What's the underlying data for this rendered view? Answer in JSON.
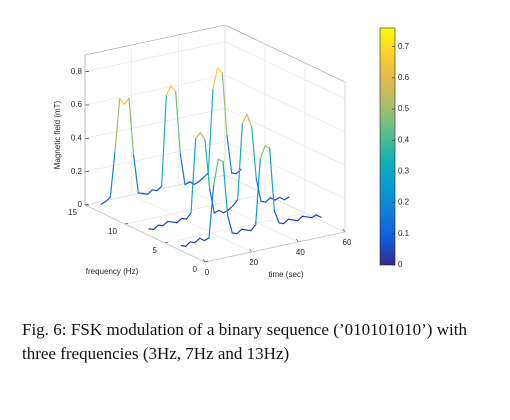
{
  "chart_data": {
    "type": "waterfall3d",
    "zlabel": "Magnetic field (mT)",
    "ylabel": "frequency (Hz)",
    "xlabel": "time (sec)",
    "caption": "Fig. 6: FSK modulation of a binary sequence (’010101010’) with three frequencies (3Hz, 7Hz and 13Hz)",
    "x": [
      0,
      2,
      4,
      6,
      8,
      10,
      12,
      14,
      16,
      18,
      20,
      22,
      24,
      26,
      28,
      30,
      32,
      34,
      36,
      38,
      40,
      42,
      44,
      46,
      48,
      50,
      52,
      54,
      56,
      58,
      60
    ],
    "series": [
      {
        "frequency": 13,
        "values": [
          0.05,
          0.06,
          0.08,
          0.35,
          0.66,
          0.62,
          0.65,
          0.3,
          0.07,
          0.06,
          0.05,
          0.07,
          0.06,
          0.08,
          0.62,
          0.67,
          0.63,
          0.25,
          0.06,
          0.07,
          0.05,
          0.06,
          0.08,
          0.1,
          0.6,
          0.72,
          0.68,
          0.3,
          0.07,
          0.06,
          0.08
        ]
      },
      {
        "frequency": 7,
        "values": [
          0.04,
          0.03,
          0.05,
          0.04,
          0.06,
          0.05,
          0.04,
          0.06,
          0.05,
          0.08,
          0.52,
          0.55,
          0.5,
          0.2,
          0.05,
          0.06,
          0.04,
          0.05,
          0.07,
          0.1,
          0.55,
          0.6,
          0.52,
          0.2,
          0.06,
          0.05,
          0.07,
          0.05,
          0.06,
          0.04,
          0.05
        ]
      },
      {
        "frequency": 3,
        "values": [
          0.03,
          0.02,
          0.04,
          0.03,
          0.05,
          0.03,
          0.04,
          0.35,
          0.5,
          0.48,
          0.15,
          0.04,
          0.03,
          0.05,
          0.04,
          0.03,
          0.06,
          0.45,
          0.52,
          0.5,
          0.12,
          0.04,
          0.03,
          0.05,
          0.04,
          0.03,
          0.05,
          0.04,
          0.03,
          0.04,
          0.02
        ]
      }
    ],
    "xlim": [
      0,
      60
    ],
    "xticks": [
      0,
      20,
      40,
      60
    ],
    "ylim": [
      0,
      15
    ],
    "yticks": [
      0,
      5,
      10,
      15
    ],
    "zlim": [
      0,
      0.9
    ],
    "zticks": [
      0,
      0.2,
      0.4,
      0.6,
      0.8
    ],
    "clim": [
      0,
      0.76
    ],
    "cticks": [
      0,
      0.1,
      0.2,
      0.3,
      0.4,
      0.5,
      0.6,
      0.7
    ],
    "colormap": "parula",
    "grid": true
  }
}
